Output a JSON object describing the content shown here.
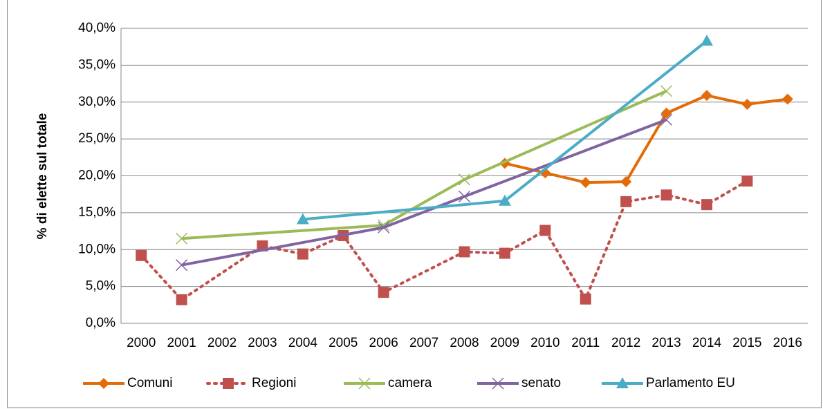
{
  "chart_data": {
    "type": "line",
    "y_label": "% di elette sul totale",
    "categories": [
      "2000",
      "2001",
      "2002",
      "2003",
      "2004",
      "2005",
      "2006",
      "2007",
      "2008",
      "2009",
      "2010",
      "2011",
      "2012",
      "2013",
      "2014",
      "2015",
      "2016"
    ],
    "series": [
      {
        "name": "Comuni",
        "color": "#e36c09",
        "marker": "diamond",
        "dash": "solid",
        "values": [
          null,
          null,
          null,
          null,
          null,
          null,
          null,
          null,
          null,
          21.7,
          20.4,
          19.1,
          19.2,
          28.5,
          30.9,
          29.7,
          30.4
        ]
      },
      {
        "name": "Regioni",
        "color": "#c0504d",
        "marker": "square",
        "dash": "dotted",
        "values": [
          9.2,
          3.2,
          null,
          10.5,
          9.4,
          11.9,
          4.2,
          null,
          9.7,
          9.5,
          12.6,
          3.3,
          16.5,
          17.4,
          16.1,
          19.3,
          null
        ]
      },
      {
        "name": "camera",
        "color": "#9bbb59",
        "marker": "x",
        "dash": "solid",
        "values": [
          null,
          11.5,
          null,
          null,
          null,
          null,
          13.3,
          null,
          19.5,
          null,
          null,
          null,
          null,
          31.5,
          null,
          null,
          null
        ]
      },
      {
        "name": "senato",
        "color": "#8064a2",
        "marker": "x",
        "dash": "solid",
        "values": [
          null,
          7.9,
          null,
          null,
          null,
          null,
          13.0,
          null,
          17.2,
          null,
          null,
          null,
          null,
          27.6,
          null,
          null,
          null
        ]
      },
      {
        "name": "Parlamento EU",
        "color": "#4bacc6",
        "marker": "triangle",
        "dash": "solid",
        "values": [
          null,
          null,
          null,
          null,
          14.1,
          null,
          null,
          null,
          null,
          16.6,
          null,
          null,
          null,
          null,
          38.3,
          null,
          null
        ]
      }
    ],
    "connect_gaps": true,
    "ylim": [
      0,
      40
    ],
    "yticks": [
      {
        "value": 0,
        "label": "0,0%"
      },
      {
        "value": 5,
        "label": "5,0%"
      },
      {
        "value": 10,
        "label": "10,0%"
      },
      {
        "value": 15,
        "label": "15,0%"
      },
      {
        "value": 20,
        "label": "20,0%"
      },
      {
        "value": 25,
        "label": "25,0%"
      },
      {
        "value": 30,
        "label": "30,0%"
      },
      {
        "value": 35,
        "label": "35,0%"
      },
      {
        "value": 40,
        "label": "40,0%"
      }
    ],
    "grid": true,
    "legend": "bottom"
  }
}
